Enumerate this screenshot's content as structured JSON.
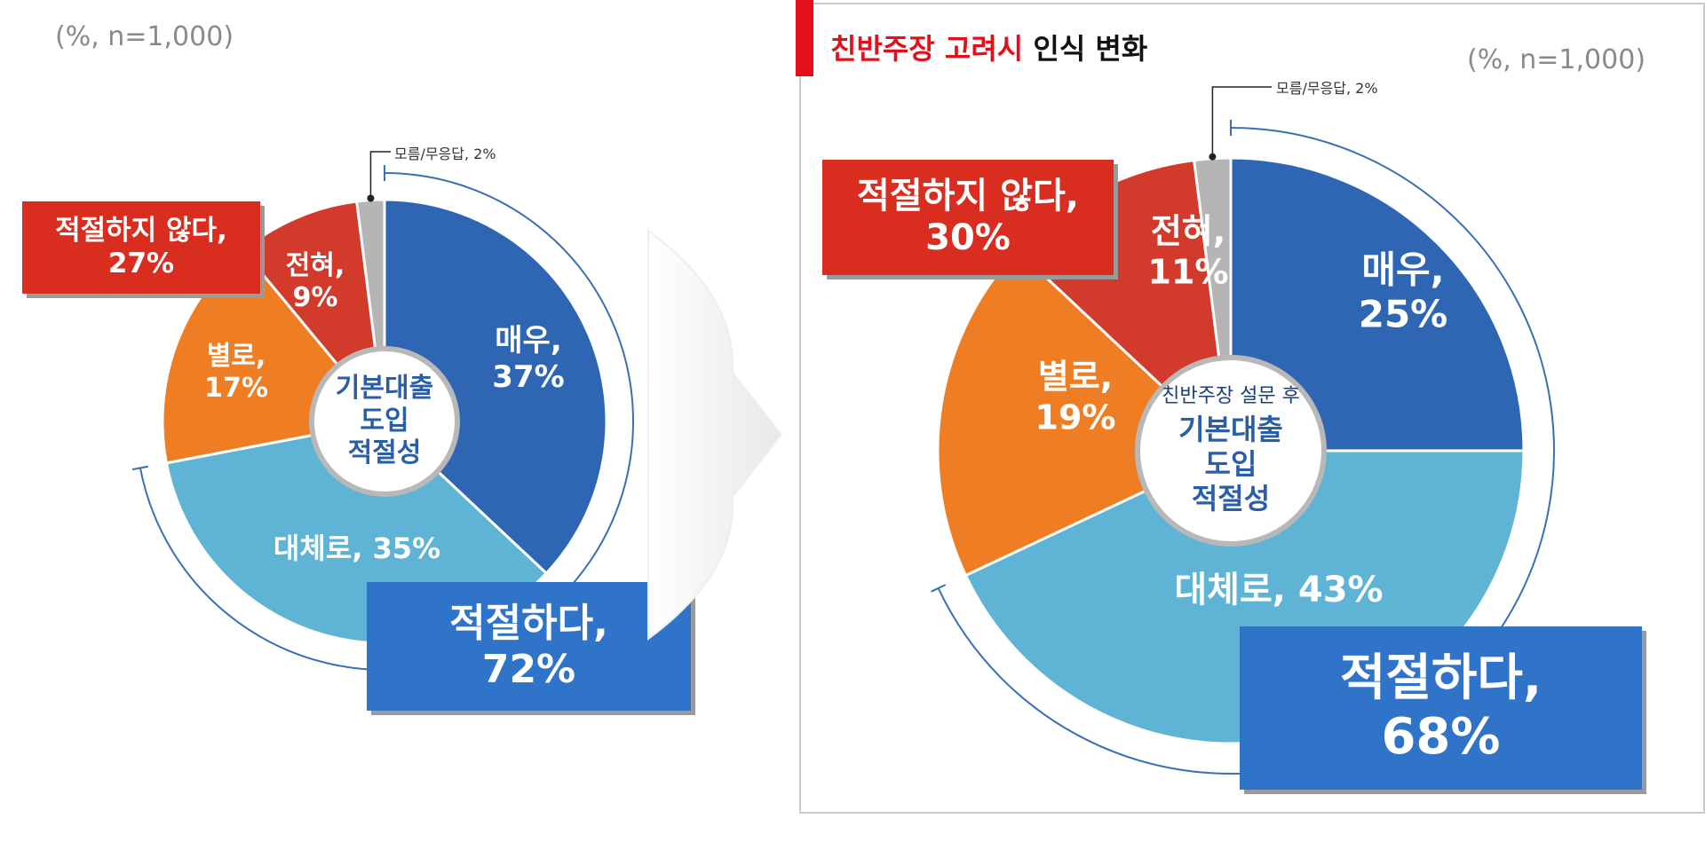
{
  "chart_data": [
    {
      "type": "pie",
      "subtype": "donut",
      "note": "(%, n=1,000)",
      "center_label": [
        "기본대출",
        "도입",
        "적절성"
      ],
      "dk_label": "모름/무응답, 2%",
      "slices": [
        {
          "label": "매우,",
          "value": 37,
          "color": "#2e66b3"
        },
        {
          "label": "대체로,",
          "value": 35,
          "color": "#5fb4d6"
        },
        {
          "label": "별로,",
          "value": 17,
          "color": "#ef7d23"
        },
        {
          "label": "전혀,",
          "value": 9,
          "color": "#d23a2c"
        },
        {
          "label": "모름/무응답",
          "value": 2,
          "color": "#b5b5b5"
        }
      ],
      "slice_texts": {
        "very": "37%",
        "mostly": "대체로, 35%",
        "not_much": "17%",
        "never": "9%"
      },
      "summary": {
        "negative": {
          "label": "적절하지 않다,",
          "value": "27%"
        },
        "positive": {
          "label": "적절하다,",
          "value": "72%"
        }
      }
    },
    {
      "type": "pie",
      "subtype": "donut",
      "title_red": "친반주장 고려시",
      "title_black": "인식 변화",
      "note": "(%, n=1,000)",
      "center_sub": "친반주장 설문 후",
      "center_label": [
        "기본대출",
        "도입",
        "적절성"
      ],
      "dk_label": "모름/무응답, 2%",
      "slices": [
        {
          "label": "매우,",
          "value": 25,
          "color": "#2e66b3"
        },
        {
          "label": "대체로,",
          "value": 43,
          "color": "#5fb4d6"
        },
        {
          "label": "별로,",
          "value": 19,
          "color": "#ef7d23"
        },
        {
          "label": "전혀,",
          "value": 11,
          "color": "#d23a2c"
        },
        {
          "label": "모름/무응답",
          "value": 2,
          "color": "#b5b5b5"
        }
      ],
      "slice_texts": {
        "very": "25%",
        "mostly": "대체로, 43%",
        "not_much": "19%",
        "never": "11%"
      },
      "summary": {
        "negative": {
          "label": "적절하지 않다,",
          "value": "30%"
        },
        "positive": {
          "label": "적절하다,",
          "value": "68%"
        }
      }
    }
  ]
}
